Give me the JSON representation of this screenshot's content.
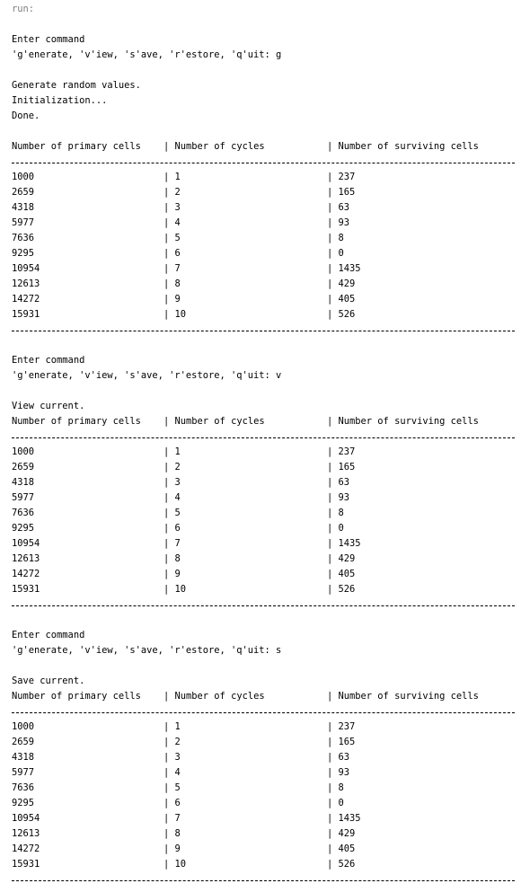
{
  "console": {
    "header": "run:",
    "blocks": [
      {
        "prompt_title": "Enter command",
        "prompt_options": "'g'enerate, 'v'iew, 's'ave, 'r'estore, 'q'uit: g",
        "messages": [
          "",
          "Generate random values.",
          "Initialization...",
          "Done.",
          ""
        ],
        "table_headers": [
          "Number of primary cells",
          "| Number of cycles",
          "| Number of surviving cells"
        ],
        "rows": [
          [
            "1000",
            "| 1",
            "| 237"
          ],
          [
            "2659",
            "| 2",
            "| 165"
          ],
          [
            "4318",
            "| 3",
            "| 63"
          ],
          [
            "5977",
            "| 4",
            "| 93"
          ],
          [
            "7636",
            "| 5",
            "| 8"
          ],
          [
            "9295",
            "| 6",
            "| 0"
          ],
          [
            "10954",
            "| 7",
            "| 1435"
          ],
          [
            "12613",
            "| 8",
            "| 429"
          ],
          [
            "14272",
            "| 9",
            "| 405"
          ],
          [
            "15931",
            "| 10",
            "| 526"
          ]
        ]
      },
      {
        "prompt_title": "Enter command",
        "prompt_options": "'g'enerate, 'v'iew, 's'ave, 'r'estore, 'q'uit: v",
        "messages": [
          "",
          "View current."
        ],
        "table_headers": [
          "Number of primary cells",
          "| Number of cycles",
          "| Number of surviving cells"
        ],
        "rows": [
          [
            "1000",
            "| 1",
            "| 237"
          ],
          [
            "2659",
            "| 2",
            "| 165"
          ],
          [
            "4318",
            "| 3",
            "| 63"
          ],
          [
            "5977",
            "| 4",
            "| 93"
          ],
          [
            "7636",
            "| 5",
            "| 8"
          ],
          [
            "9295",
            "| 6",
            "| 0"
          ],
          [
            "10954",
            "| 7",
            "| 1435"
          ],
          [
            "12613",
            "| 8",
            "| 429"
          ],
          [
            "14272",
            "| 9",
            "| 405"
          ],
          [
            "15931",
            "| 10",
            "| 526"
          ]
        ]
      },
      {
        "prompt_title": "Enter command",
        "prompt_options": "'g'enerate, 'v'iew, 's'ave, 'r'estore, 'q'uit: s",
        "messages": [
          "",
          "Save current."
        ],
        "table_headers": [
          "Number of primary cells",
          "| Number of cycles",
          "| Number of surviving cells"
        ],
        "rows": [
          [
            "1000",
            "| 1",
            "| 237"
          ],
          [
            "2659",
            "| 2",
            "| 165"
          ],
          [
            "4318",
            "| 3",
            "| 63"
          ],
          [
            "5977",
            "| 4",
            "| 93"
          ],
          [
            "7636",
            "| 5",
            "| 8"
          ],
          [
            "9295",
            "| 6",
            "| 0"
          ],
          [
            "10954",
            "| 7",
            "| 1435"
          ],
          [
            "12613",
            "| 8",
            "| 429"
          ],
          [
            "14272",
            "| 9",
            "| 405"
          ],
          [
            "15931",
            "| 10",
            "| 526"
          ]
        ]
      }
    ]
  }
}
